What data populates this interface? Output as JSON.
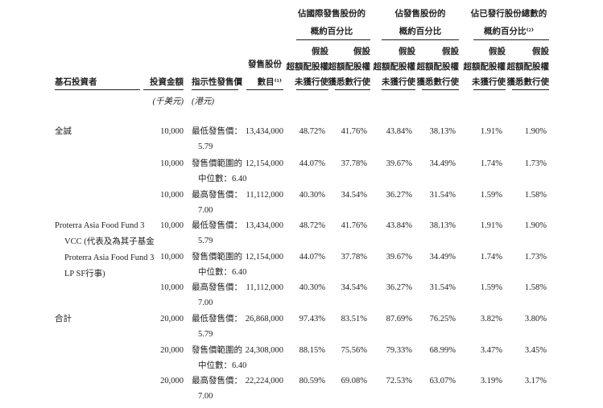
{
  "header": {
    "group_intl": [
      "佔國際發售股份的",
      "概約百分比"
    ],
    "group_offer": [
      "佔發售股份的",
      "概約百分比"
    ],
    "group_total": [
      "佔已發行股份總數的",
      "概約百分比⁽²⁾"
    ],
    "col_investor": "基石投資者",
    "col_amount": "投資金額",
    "col_amount_unit": "(千美元)",
    "col_price": "指示性發售價",
    "col_price_unit": "(港元)",
    "col_shares": [
      "發售股份",
      "數目⁽¹⁾"
    ],
    "sub_not_exercised": [
      "假設",
      "超額配股權",
      "未獲行使"
    ],
    "sub_exercised": [
      "假設",
      "超額配股權",
      "獲悉數行使"
    ]
  },
  "groups": [
    {
      "investor": [
        "全誠"
      ],
      "rows": [
        {
          "amount": "10,000",
          "price": [
            "最低發售價：",
            "5.79"
          ],
          "shares": "13,434,000",
          "intl_a": "48.72%",
          "intl_b": "41.76%",
          "offer_a": "43.84%",
          "offer_b": "38.13%",
          "total_a": "1.91%",
          "total_b": "1.90%"
        },
        {
          "amount": "10,000",
          "price": [
            "發售價範圍的",
            "中位數：6.40"
          ],
          "shares": "12,154,000",
          "intl_a": "44.07%",
          "intl_b": "37.78%",
          "offer_a": "39.67%",
          "offer_b": "34.49%",
          "total_a": "1.74%",
          "total_b": "1.73%"
        },
        {
          "amount": "10,000",
          "price": [
            "最高發售價：",
            "7.00"
          ],
          "shares": "11,112,000",
          "intl_a": "40.30%",
          "intl_b": "34.54%",
          "offer_a": "36.27%",
          "offer_b": "31.54%",
          "total_a": "1.59%",
          "total_b": "1.58%"
        }
      ]
    },
    {
      "investor": [
        "Proterra Asia Food Fund 3",
        "VCC (代表及為其子基金",
        "Proterra Asia Food Fund 3",
        "LP SF行事)"
      ],
      "rows": [
        {
          "amount": "10,000",
          "price": [
            "最低發售價：",
            "5.79"
          ],
          "shares": "13,434,000",
          "intl_a": "48.72%",
          "intl_b": "41.76%",
          "offer_a": "43.84%",
          "offer_b": "38.13%",
          "total_a": "1.91%",
          "total_b": "1.90%"
        },
        {
          "amount": "10,000",
          "price": [
            "發售價範圍的",
            "中位數：6.40"
          ],
          "shares": "12,154,000",
          "intl_a": "44.07%",
          "intl_b": "37.78%",
          "offer_a": "39.67%",
          "offer_b": "34.49%",
          "total_a": "1.74%",
          "total_b": "1.73%"
        },
        {
          "amount": "10,000",
          "price": [
            "最高發售價：",
            "7.00"
          ],
          "shares": "11,112,000",
          "intl_a": "40.30%",
          "intl_b": "34.54%",
          "offer_a": "36.27%",
          "offer_b": "31.54%",
          "total_a": "1.59%",
          "total_b": "1.58%"
        }
      ]
    },
    {
      "investor": [
        "合計"
      ],
      "rows": [
        {
          "amount": "20,000",
          "price": [
            "最低發售價：",
            "5.79"
          ],
          "shares": "26,868,000",
          "intl_a": "97.43%",
          "intl_b": "83.51%",
          "offer_a": "87.69%",
          "offer_b": "76.25%",
          "total_a": "3.82%",
          "total_b": "3.80%"
        },
        {
          "amount": "20,000",
          "price": [
            "發售價範圍的",
            "中位數：6.40"
          ],
          "shares": "24,308,000",
          "intl_a": "88.15%",
          "intl_b": "75.56%",
          "offer_a": "79.33%",
          "offer_b": "68.99%",
          "total_a": "3.47%",
          "total_b": "3.45%"
        },
        {
          "amount": "20,000",
          "price": [
            "最高發售價：",
            "7.00"
          ],
          "shares": "22,224,000",
          "intl_a": "80.59%",
          "intl_b": "69.08%",
          "offer_a": "72.53%",
          "offer_b": "63.07%",
          "total_a": "3.19%",
          "total_b": "3.17%"
        }
      ]
    }
  ]
}
